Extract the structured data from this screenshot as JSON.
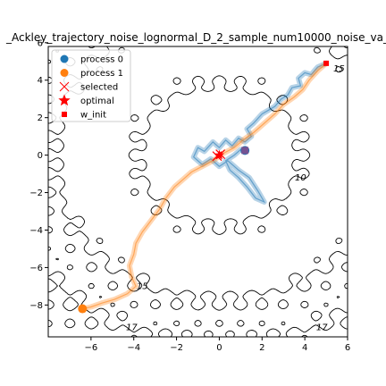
{
  "chart_data": {
    "type": "scatter",
    "title": "_Ackley_trajectory_noise_lognormal_D_2_sample_num10000_noise_va_",
    "xlim": [
      -8,
      6
    ],
    "ylim": [
      -9.7,
      5.8
    ],
    "xticks": [
      "−6",
      "−4",
      "−2",
      "0",
      "2",
      "4",
      "6"
    ],
    "xtick_values": [
      -6,
      -4,
      -2,
      0,
      2,
      4,
      6
    ],
    "yticks": [
      "−8",
      "−6",
      "−4",
      "−2",
      "0",
      "2",
      "4",
      "6"
    ],
    "ytick_values": [
      -8,
      -6,
      -4,
      -2,
      0,
      2,
      4,
      6
    ],
    "grid": false,
    "legend_position": "upper left",
    "legend": [
      {
        "label": "process 0",
        "marker": "circle",
        "color": "#1f77b4"
      },
      {
        "label": "process 1",
        "marker": "circle",
        "color": "#ff7f0e"
      },
      {
        "label": "selected",
        "marker": "x",
        "color": "#ff0000"
      },
      {
        "label": "optimal",
        "marker": "star",
        "color": "#ff0000"
      },
      {
        "label": "w_init",
        "marker": "square",
        "color": "#ff0000"
      }
    ],
    "contour_labels": [
      {
        "text": "15",
        "x": 5.6,
        "y": 4.6
      },
      {
        "text": "10",
        "x": 3.8,
        "y": -1.2
      },
      {
        "text": "15",
        "x": -3.6,
        "y": -7.0
      },
      {
        "text": "17",
        "x": -4.1,
        "y": -9.2
      },
      {
        "text": "17",
        "x": 4.8,
        "y": -9.2
      }
    ],
    "w_init": {
      "x": 5.0,
      "y": 4.9
    },
    "optimal": {
      "x": 0.0,
      "y": 0.0
    },
    "selected": [
      {
        "x": 0.05,
        "y": 0.05
      },
      {
        "x": -0.1,
        "y": -0.05
      }
    ],
    "process_0_final": {
      "x": 1.2,
      "y": 0.25
    },
    "process_1_final": {
      "x": -6.4,
      "y": -8.2
    },
    "series": [
      {
        "name": "process 0",
        "color": "#1f77b4",
        "points": [
          [
            5.0,
            4.9
          ],
          [
            4.6,
            4.7
          ],
          [
            4.3,
            4.3
          ],
          [
            4.0,
            4.4
          ],
          [
            3.7,
            4.1
          ],
          [
            3.8,
            3.7
          ],
          [
            3.4,
            3.6
          ],
          [
            3.2,
            3.2
          ],
          [
            2.9,
            3.0
          ],
          [
            2.6,
            2.6
          ],
          [
            2.3,
            2.4
          ],
          [
            2.0,
            2.2
          ],
          [
            1.6,
            1.7
          ],
          [
            1.3,
            1.4
          ],
          [
            1.5,
            1.0
          ],
          [
            1.2,
            0.7
          ],
          [
            0.9,
            0.9
          ],
          [
            0.6,
            0.5
          ],
          [
            0.3,
            0.8
          ],
          [
            0.0,
            0.4
          ],
          [
            -0.3,
            0.7
          ],
          [
            -0.7,
            0.2
          ],
          [
            -1.0,
            0.4
          ],
          [
            -1.2,
            -0.1
          ],
          [
            -0.8,
            -0.5
          ],
          [
            -0.4,
            -0.2
          ],
          [
            0.0,
            -0.6
          ],
          [
            0.4,
            -0.3
          ],
          [
            0.9,
            -0.8
          ],
          [
            1.4,
            -1.2
          ],
          [
            1.8,
            -1.9
          ],
          [
            2.1,
            -2.5
          ],
          [
            1.7,
            -2.3
          ],
          [
            1.3,
            -1.7
          ],
          [
            0.9,
            -1.2
          ],
          [
            0.5,
            -0.8
          ],
          [
            0.3,
            -0.3
          ],
          [
            0.7,
            0.0
          ],
          [
            1.0,
            0.3
          ],
          [
            1.2,
            0.25
          ]
        ]
      },
      {
        "name": "process 1",
        "color": "#ff7f0e",
        "points": [
          [
            5.0,
            4.9
          ],
          [
            4.6,
            4.5
          ],
          [
            4.2,
            4.0
          ],
          [
            3.9,
            3.5
          ],
          [
            3.5,
            3.1
          ],
          [
            3.0,
            2.7
          ],
          [
            2.6,
            2.2
          ],
          [
            2.1,
            1.7
          ],
          [
            1.6,
            1.2
          ],
          [
            1.1,
            0.8
          ],
          [
            0.7,
            0.4
          ],
          [
            0.2,
            0.1
          ],
          [
            -0.3,
            -0.3
          ],
          [
            -0.8,
            -0.6
          ],
          [
            -1.3,
            -0.9
          ],
          [
            -1.7,
            -1.3
          ],
          [
            -2.1,
            -1.7
          ],
          [
            -2.5,
            -2.3
          ],
          [
            -2.8,
            -2.9
          ],
          [
            -3.2,
            -3.5
          ],
          [
            -3.6,
            -4.1
          ],
          [
            -3.9,
            -4.7
          ],
          [
            -4.0,
            -5.3
          ],
          [
            -4.2,
            -5.9
          ],
          [
            -4.1,
            -6.5
          ],
          [
            -3.9,
            -7.0
          ],
          [
            -4.3,
            -7.4
          ],
          [
            -4.9,
            -7.7
          ],
          [
            -5.5,
            -7.9
          ],
          [
            -6.0,
            -8.1
          ],
          [
            -6.4,
            -8.2
          ]
        ]
      }
    ]
  }
}
